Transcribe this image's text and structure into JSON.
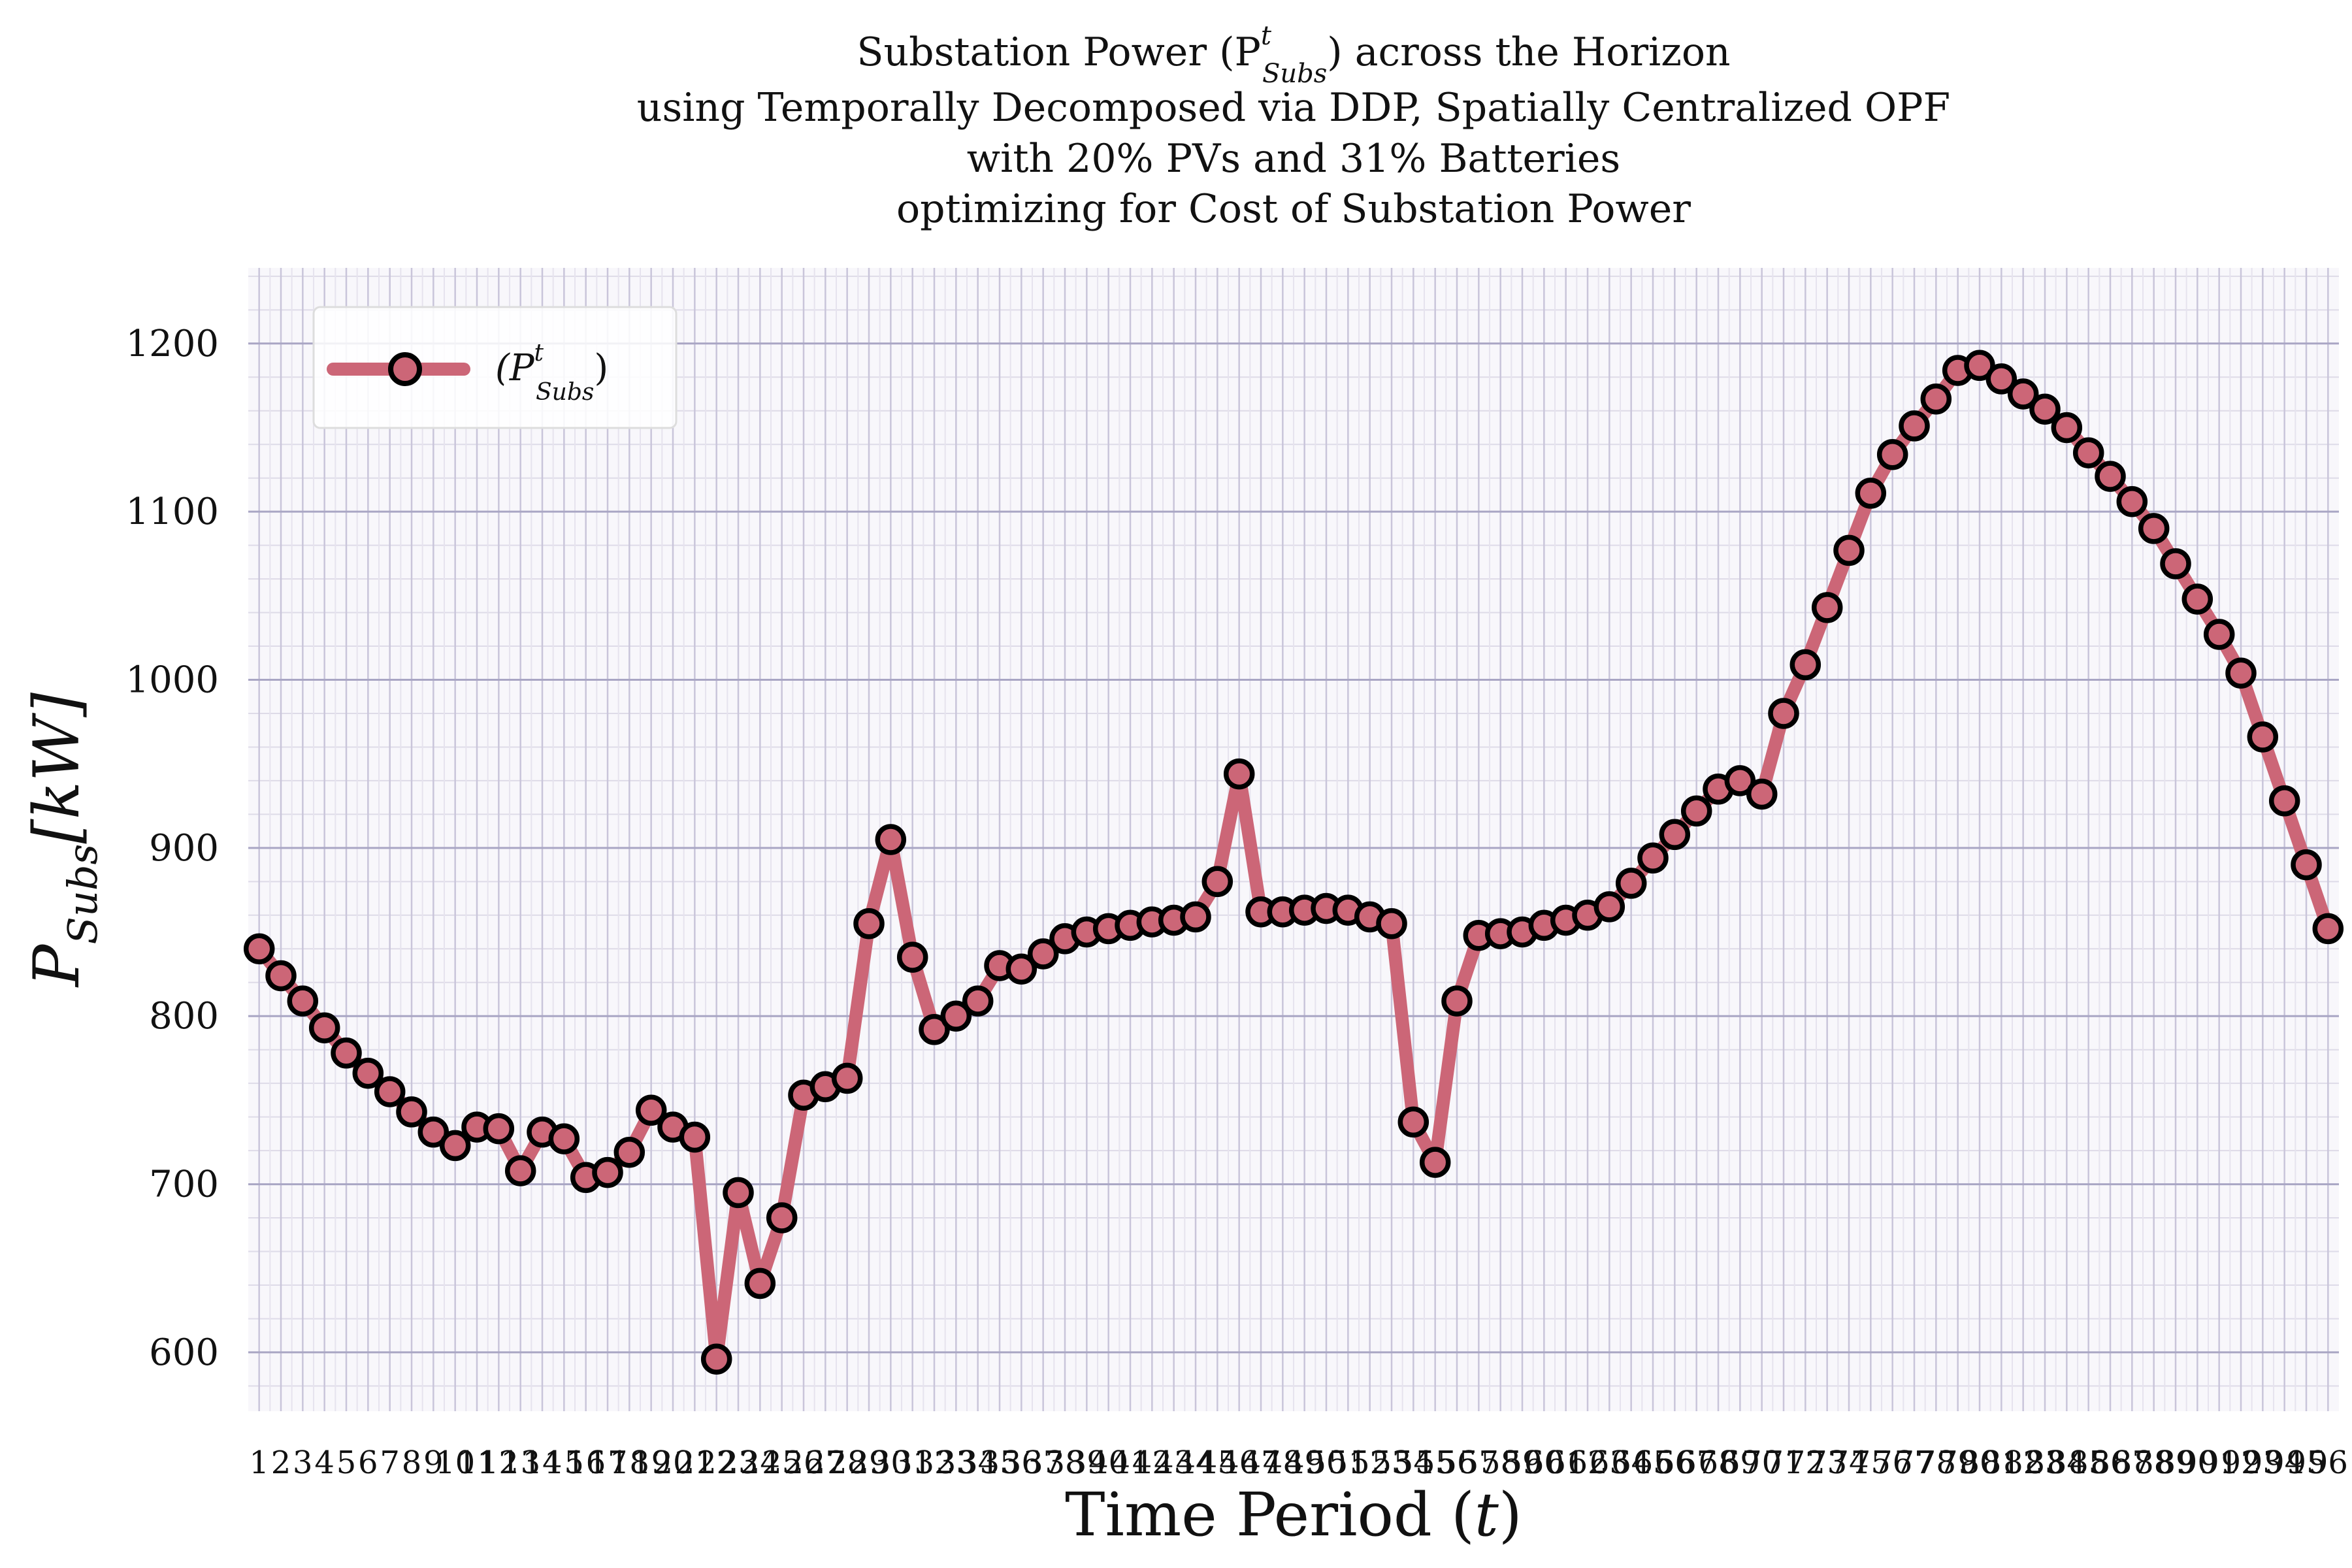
{
  "chart_data": {
    "type": "line",
    "title_lines": [
      "Substation Power (P",
      "using Temporally Decomposed via DDP, Spatially Centralized OPF",
      "with 20% PVs and 31% Batteries",
      "optimizing for Cost of Substation Power"
    ],
    "title_symbol": {
      "base": "P",
      "sup": "t",
      "sub": "Subs",
      "after": ") across the Horizon"
    },
    "xlabel": "Time Period (",
    "xlabel_var": "t",
    "xlabel_close": ")",
    "ylabel_base": "P",
    "ylabel_sub": "Subs",
    "ylabel_unit": "[kW]",
    "ylim": [
      565,
      1245
    ],
    "yticks": [
      600,
      700,
      800,
      900,
      1000,
      1100,
      1200
    ],
    "grid": true,
    "legend_position": "top-left",
    "series": [
      {
        "name": "(P",
        "name_sup": "t",
        "name_sub": "Subs",
        "name_close": ")",
        "color": "#cc6677",
        "marker_edge": "#000000",
        "x": [
          1,
          2,
          3,
          4,
          5,
          6,
          7,
          8,
          9,
          10,
          11,
          12,
          13,
          14,
          15,
          16,
          17,
          18,
          19,
          20,
          21,
          22,
          23,
          24,
          25,
          26,
          27,
          28,
          29,
          30,
          31,
          32,
          33,
          34,
          35,
          36,
          37,
          38,
          39,
          40,
          41,
          42,
          43,
          44,
          45,
          46,
          47,
          48,
          49,
          50,
          51,
          52,
          53,
          54,
          55,
          56,
          57,
          58,
          59,
          60,
          61,
          62,
          63,
          64,
          65,
          66,
          67,
          68,
          69,
          70,
          71,
          72,
          73,
          74,
          75,
          76,
          77,
          78,
          79,
          80,
          81,
          82,
          83,
          84,
          85,
          86,
          87,
          88,
          89,
          90,
          91,
          92,
          93,
          94,
          95,
          96
        ],
        "values": [
          840,
          824,
          809,
          793,
          778,
          766,
          755,
          743,
          731,
          723,
          734,
          733,
          708,
          731,
          727,
          704,
          707,
          719,
          744,
          734,
          728,
          596,
          695,
          641,
          680,
          753,
          758,
          763,
          855,
          905,
          835,
          792,
          800,
          809,
          830,
          828,
          837,
          846,
          850,
          852,
          854,
          856,
          857,
          859,
          880,
          944,
          862,
          862,
          863,
          864,
          863,
          859,
          855,
          737,
          713,
          809,
          848,
          849,
          850,
          854,
          857,
          860,
          865,
          879,
          894,
          908,
          922,
          935,
          940,
          932,
          980,
          1009,
          1043,
          1077,
          1111,
          1134,
          1151,
          1167,
          1184,
          1187,
          1179,
          1170,
          1161,
          1150,
          1135,
          1121,
          1106,
          1090,
          1069,
          1048,
          1027,
          1004,
          966,
          928,
          890,
          852
        ]
      }
    ]
  }
}
